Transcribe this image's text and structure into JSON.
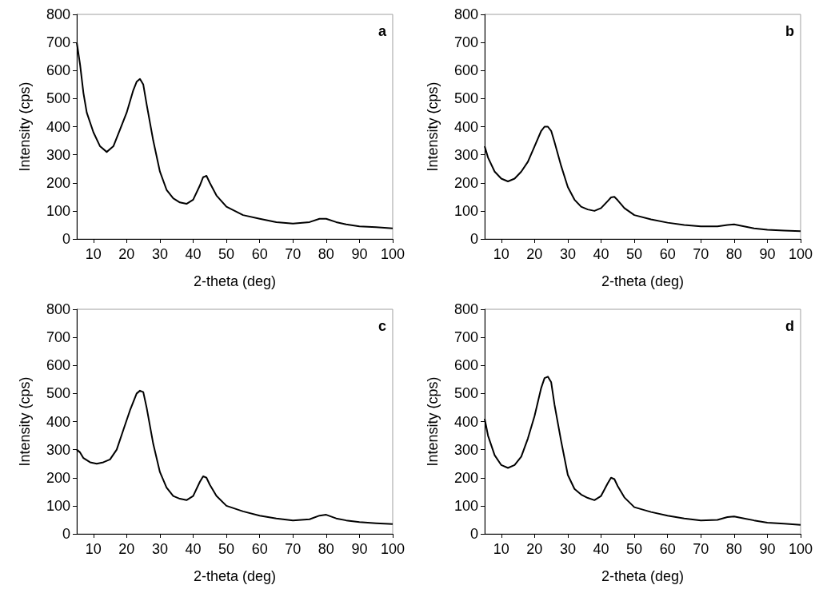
{
  "chart_data": [
    {
      "type": "line",
      "annotations": [
        "a"
      ],
      "xlabel": "2-theta (deg)",
      "ylabel": "Intensity (cps)",
      "color": "#000000",
      "xlim": [
        5,
        100
      ],
      "xticks": [
        10,
        20,
        30,
        40,
        50,
        60,
        70,
        80,
        90,
        100
      ],
      "ylim": [
        0,
        800
      ],
      "yticks": [
        0,
        100,
        200,
        300,
        400,
        500,
        600,
        700,
        800
      ],
      "x": [
        5,
        6,
        7,
        8,
        10,
        12,
        14,
        16,
        18,
        20,
        22,
        23,
        24,
        25,
        26,
        28,
        30,
        32,
        34,
        36,
        38,
        40,
        42,
        43,
        44,
        45,
        47,
        50,
        55,
        60,
        65,
        70,
        75,
        78,
        80,
        83,
        86,
        90,
        95,
        100
      ],
      "values": [
        700,
        620,
        520,
        450,
        380,
        330,
        310,
        330,
        390,
        450,
        530,
        560,
        570,
        550,
        480,
        350,
        240,
        175,
        145,
        130,
        125,
        140,
        190,
        220,
        225,
        200,
        155,
        115,
        85,
        72,
        60,
        55,
        60,
        72,
        72,
        60,
        52,
        45,
        42,
        38
      ]
    },
    {
      "type": "line",
      "annotations": [
        "b"
      ],
      "xlabel": "2-theta (deg)",
      "ylabel": "Intensity (cps)",
      "color": "#000000",
      "xlim": [
        5,
        100
      ],
      "xticks": [
        10,
        20,
        30,
        40,
        50,
        60,
        70,
        80,
        90,
        100
      ],
      "ylim": [
        0,
        800
      ],
      "yticks": [
        0,
        100,
        200,
        300,
        400,
        500,
        600,
        700,
        800
      ],
      "x": [
        5,
        6,
        8,
        10,
        12,
        14,
        16,
        18,
        20,
        22,
        23,
        24,
        25,
        26,
        28,
        30,
        32,
        34,
        36,
        38,
        40,
        42,
        43,
        44,
        45,
        47,
        50,
        55,
        60,
        65,
        70,
        75,
        78,
        80,
        83,
        86,
        90,
        95,
        100
      ],
      "values": [
        330,
        290,
        240,
        215,
        205,
        215,
        240,
        275,
        330,
        385,
        400,
        400,
        385,
        345,
        260,
        185,
        140,
        115,
        105,
        100,
        110,
        135,
        148,
        150,
        138,
        110,
        85,
        70,
        58,
        50,
        45,
        45,
        50,
        52,
        45,
        38,
        33,
        30,
        28
      ]
    },
    {
      "type": "line",
      "annotations": [
        "c"
      ],
      "xlabel": "2-theta (deg)",
      "ylabel": "Intensity (cps)",
      "color": "#000000",
      "xlim": [
        5,
        100
      ],
      "xticks": [
        10,
        20,
        30,
        40,
        50,
        60,
        70,
        80,
        90,
        100
      ],
      "ylim": [
        0,
        800
      ],
      "yticks": [
        0,
        100,
        200,
        300,
        400,
        500,
        600,
        700,
        800
      ],
      "x": [
        5,
        6,
        7,
        9,
        11,
        13,
        15,
        17,
        19,
        21,
        23,
        24,
        25,
        26,
        28,
        30,
        32,
        34,
        36,
        38,
        40,
        42,
        43,
        44,
        45,
        47,
        50,
        55,
        60,
        65,
        70,
        75,
        78,
        80,
        83,
        86,
        90,
        95,
        100
      ],
      "values": [
        300,
        290,
        270,
        255,
        250,
        255,
        265,
        300,
        370,
        440,
        500,
        510,
        505,
        450,
        320,
        220,
        165,
        135,
        125,
        120,
        135,
        185,
        205,
        200,
        175,
        135,
        100,
        80,
        65,
        55,
        48,
        52,
        65,
        68,
        55,
        48,
        42,
        38,
        35
      ]
    },
    {
      "type": "line",
      "annotations": [
        "d"
      ],
      "xlabel": "2-theta (deg)",
      "ylabel": "Intensity (cps)",
      "color": "#000000",
      "xlim": [
        5,
        100
      ],
      "xticks": [
        10,
        20,
        30,
        40,
        50,
        60,
        70,
        80,
        90,
        100
      ],
      "ylim": [
        0,
        800
      ],
      "yticks": [
        0,
        100,
        200,
        300,
        400,
        500,
        600,
        700,
        800
      ],
      "x": [
        5,
        6,
        8,
        10,
        12,
        14,
        16,
        18,
        20,
        22,
        23,
        24,
        25,
        26,
        28,
        30,
        32,
        34,
        36,
        38,
        40,
        42,
        43,
        44,
        45,
        47,
        50,
        55,
        60,
        65,
        70,
        75,
        78,
        80,
        83,
        86,
        90,
        95,
        100
      ],
      "values": [
        410,
        350,
        280,
        245,
        235,
        245,
        275,
        340,
        420,
        520,
        555,
        560,
        540,
        460,
        330,
        210,
        160,
        140,
        128,
        120,
        135,
        180,
        200,
        195,
        170,
        130,
        95,
        78,
        65,
        55,
        48,
        50,
        60,
        62,
        55,
        48,
        40,
        36,
        32
      ]
    }
  ]
}
